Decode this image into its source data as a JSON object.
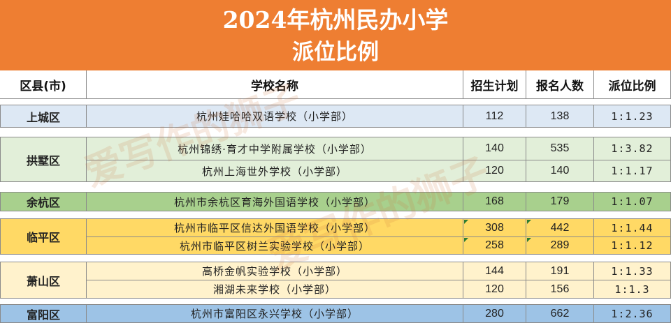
{
  "title": {
    "line1": "2024年杭州民办小学",
    "line2": "派位比例"
  },
  "header": {
    "district": "区县(市)",
    "school": "学校名称",
    "plan": "招生计划",
    "applicants": "报名人数",
    "ratio": "派位比例"
  },
  "colors": {
    "title_bg": "#ee7e32",
    "shangcheng": "#dde8f4",
    "gongshu": "#e2efd9",
    "yuhang": "#a8d08d",
    "linping": "#ffd965",
    "xiaoshan": "#fff2cc",
    "fuyang": "#9dc3e6"
  },
  "watermark": "爱写作的狮子",
  "districts": [
    {
      "name": "上城区",
      "schools": [
        {
          "name": "杭州娃哈哈双语学校（小学部）",
          "plan": "112",
          "applicants": "138",
          "ratio": "1:1.23"
        }
      ]
    },
    {
      "name": "拱墅区",
      "schools": [
        {
          "name": "杭州锦绣·育才中学附属学校（小学部）",
          "plan": "140",
          "applicants": "535",
          "ratio": "1:3.82"
        },
        {
          "name": "杭州上海世外学校（小学部）",
          "plan": "120",
          "applicants": "140",
          "ratio": "1:1.17"
        }
      ]
    },
    {
      "name": "余杭区",
      "schools": [
        {
          "name": "杭州市余杭区育海外国语学校（小学部）",
          "plan": "168",
          "applicants": "179",
          "ratio": "1:1.07"
        }
      ]
    },
    {
      "name": "临平区",
      "schools": [
        {
          "name": "杭州市临平区信达外国语学校（小学部）",
          "plan": "308",
          "applicants": "442",
          "ratio": "1:1.44"
        },
        {
          "name": "杭州市临平区树兰实验学校（小学部）",
          "plan": "258",
          "applicants": "289",
          "ratio": "1:1.12"
        }
      ]
    },
    {
      "name": "萧山区",
      "schools": [
        {
          "name": "高桥金帆实验学校（小学部）",
          "plan": "144",
          "applicants": "191",
          "ratio": "1:1.33"
        },
        {
          "name": "湘湖未来学校（小学部）",
          "plan": "120",
          "applicants": "156",
          "ratio": "1:1.3"
        }
      ]
    },
    {
      "name": "富阳区",
      "schools": [
        {
          "name": "杭州市富阳区永兴学校（小学部）",
          "plan": "280",
          "applicants": "662",
          "ratio": "1:2.36"
        }
      ]
    }
  ]
}
